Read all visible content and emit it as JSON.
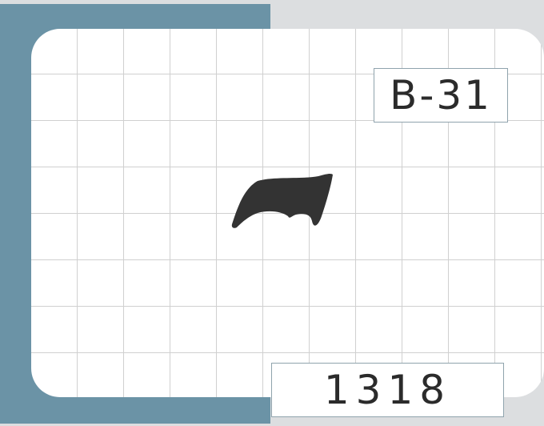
{
  "card": {
    "code": "B-31",
    "number": "1318",
    "shape_icon": "blob-silhouette-icon",
    "colors": {
      "backdrop": "#6b93a6",
      "card": "#ffffff",
      "grid": "#d0d0d0",
      "shape": "#333333",
      "text": "#2b2b2b"
    }
  }
}
